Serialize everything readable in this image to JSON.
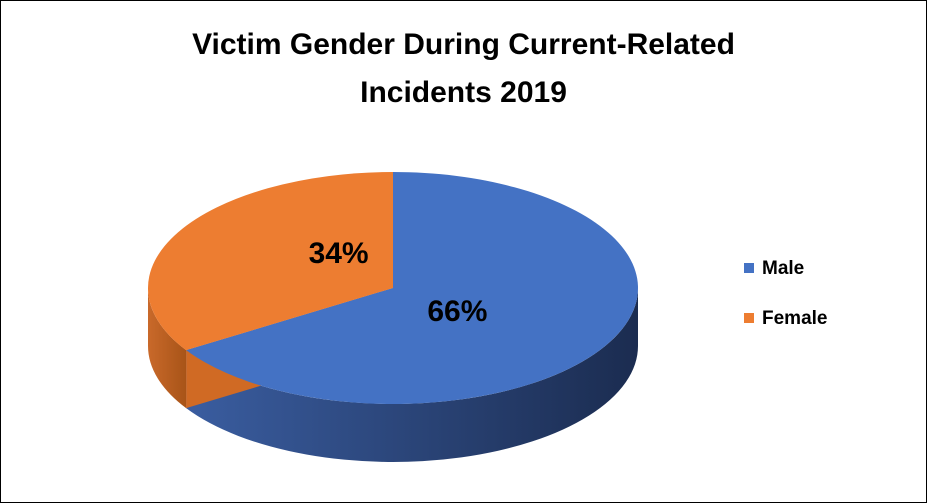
{
  "chart_data": {
    "type": "pie3d",
    "title": "Victim Gender During Current-Related Incidents 2019",
    "categories": [
      "Male",
      "Female"
    ],
    "values": [
      66,
      34
    ],
    "value_labels": [
      "66%",
      "34%"
    ],
    "colors": [
      "#4472c4",
      "#ed7d31"
    ],
    "legend": "right"
  }
}
